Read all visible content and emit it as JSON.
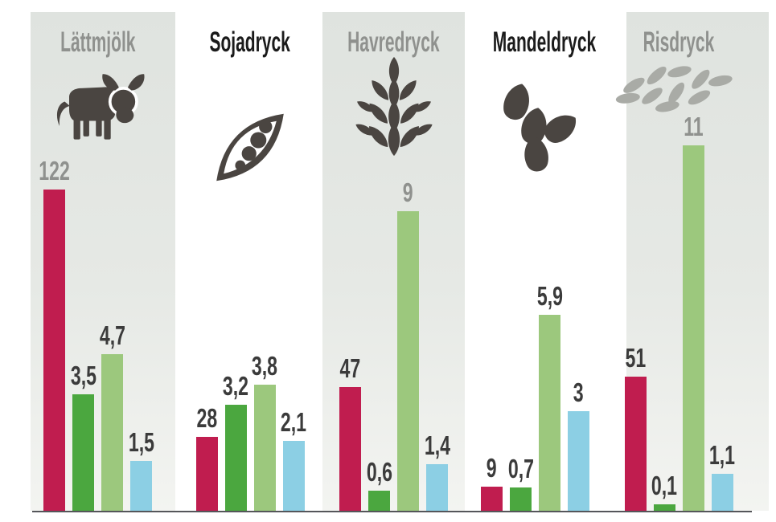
{
  "chart_data": {
    "type": "bar",
    "title": "",
    "legend": "none",
    "axis": {
      "baseline_only": true,
      "gridlines": false
    },
    "series_order": [
      "crimson",
      "green",
      "light_green",
      "blue"
    ],
    "series_colors": {
      "crimson": "#c01d4f",
      "green": "#4ba73f",
      "light_green": "#9cc87d",
      "blue": "#8ccfe4"
    },
    "groups": [
      {
        "name": "Lättmjölk",
        "icon": "cow-icon",
        "shaded": true,
        "bars": [
          {
            "series": "crimson",
            "value": 122,
            "label": "122",
            "label_muted": true
          },
          {
            "series": "green",
            "value": 3.5,
            "label": "3,5",
            "label_muted": false
          },
          {
            "series": "light_green",
            "value": 4.7,
            "label": "4,7",
            "label_muted": false
          },
          {
            "series": "blue",
            "value": 1.5,
            "label": "1,5",
            "label_muted": false
          }
        ]
      },
      {
        "name": "Sojadryck",
        "icon": "soy-pod-icon",
        "shaded": false,
        "bars": [
          {
            "series": "crimson",
            "value": 28,
            "label": "28",
            "label_muted": false
          },
          {
            "series": "green",
            "value": 3.2,
            "label": "3,2",
            "label_muted": false
          },
          {
            "series": "light_green",
            "value": 3.8,
            "label": "3,8",
            "label_muted": false
          },
          {
            "series": "blue",
            "value": 2.1,
            "label": "2,1",
            "label_muted": false
          }
        ]
      },
      {
        "name": "Havredryck",
        "icon": "oat-ear-icon",
        "shaded": true,
        "bars": [
          {
            "series": "crimson",
            "value": 47,
            "label": "47",
            "label_muted": false
          },
          {
            "series": "green",
            "value": 0.6,
            "label": "0,6",
            "label_muted": false
          },
          {
            "series": "light_green",
            "value": 9,
            "label": "9",
            "label_muted": true
          },
          {
            "series": "blue",
            "value": 1.4,
            "label": "1,4",
            "label_muted": false
          }
        ]
      },
      {
        "name": "Mandeldryck",
        "icon": "almonds-icon",
        "shaded": false,
        "bars": [
          {
            "series": "crimson",
            "value": 9,
            "label": "9",
            "label_muted": false
          },
          {
            "series": "green",
            "value": 0.7,
            "label": "0,7",
            "label_muted": false
          },
          {
            "series": "light_green",
            "value": 5.9,
            "label": "5,9",
            "label_muted": false
          },
          {
            "series": "blue",
            "value": 3,
            "label": "3",
            "label_muted": false
          }
        ]
      },
      {
        "name": "Risdryck",
        "icon": "rice-grains-icon",
        "shaded": true,
        "bars": [
          {
            "series": "crimson",
            "value": 51,
            "label": "51",
            "label_muted": false
          },
          {
            "series": "green",
            "value": 0.1,
            "label": "0,1",
            "label_muted": false
          },
          {
            "series": "light_green",
            "value": 11,
            "label": "11",
            "label_muted": true
          },
          {
            "series": "blue",
            "value": 1.1,
            "label": "1,1",
            "label_muted": false
          }
        ]
      }
    ]
  },
  "colors": {
    "panel_top": "#dfe3df",
    "panel_bottom": "#f3f4f1",
    "title_muted": "#8f918e",
    "title_dark": "#1b1b1b",
    "label_muted": "#8f918e",
    "label_dark": "#3b3b3b",
    "icon_dark": "#4a4541",
    "icon_rice": "#a9aba6",
    "axis": "#55565a",
    "background": "#ffffff"
  }
}
